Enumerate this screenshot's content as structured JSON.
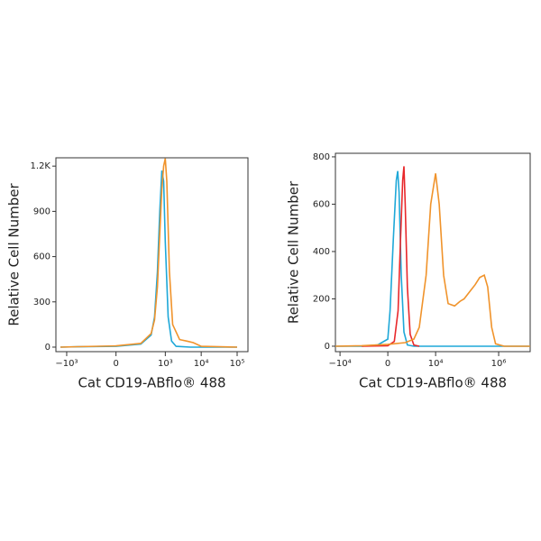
{
  "chart_data": [
    {
      "type": "line",
      "x_label": "Cat CD19-ABflo® 488",
      "y_label": "Relative Cell Number",
      "xscale": "asinh",
      "xlim": [
        -2000,
        200000
      ],
      "ylim": [
        -30,
        1255
      ],
      "xticks": [
        {
          "value": -1000,
          "label": "−10³"
        },
        0,
        {
          "value": 1000,
          "label": "10³"
        },
        {
          "value": 10000,
          "label": "10⁴"
        },
        {
          "value": 100000,
          "label": "10⁵"
        }
      ],
      "yticks": [
        0,
        300,
        600,
        900,
        {
          "value": 1200,
          "label": "1.2K"
        }
      ],
      "series": [
        {
          "color": "#1fa8d8",
          "x": [
            -1500,
            -500,
            0,
            200,
            400,
            500,
            600,
            700,
            800,
            900,
            1000,
            1200,
            1500,
            2000,
            5000,
            100000
          ],
          "values": [
            0,
            2,
            5,
            20,
            80,
            200,
            500,
            900,
            1170,
            1100,
            700,
            200,
            40,
            5,
            0,
            0
          ]
        },
        {
          "color": "#f0932b",
          "x": [
            -1500,
            -500,
            0,
            200,
            400,
            500,
            600,
            700,
            800,
            900,
            1000,
            1100,
            1300,
            1600,
            2500,
            4000,
            6000,
            10000,
            100000
          ],
          "values": [
            0,
            3,
            8,
            25,
            90,
            180,
            400,
            750,
            1050,
            1200,
            1250,
            1100,
            500,
            150,
            50,
            40,
            30,
            5,
            0
          ]
        }
      ]
    },
    {
      "type": "line",
      "x_label": "Cat CD19-ABflo® 488",
      "y_label": "Relative Cell Number",
      "xscale": "asinh",
      "xlim": [
        -14000,
        10000000
      ],
      "ylim": [
        -23,
        815
      ],
      "xticks": [
        {
          "value": -10000,
          "label": "−10⁴"
        },
        0,
        {
          "value": 10000,
          "label": "10⁴"
        },
        {
          "value": 1000000,
          "label": "10⁶"
        }
      ],
      "yticks": [
        0,
        200,
        400,
        600,
        800
      ],
      "series": [
        {
          "color": "#1fa8d8",
          "x": [
            -14000,
            -2000,
            -500,
            0,
            100,
            250,
            400,
            480,
            560,
            700,
            900,
            1200,
            2000,
            10000000
          ],
          "values": [
            0,
            0,
            5,
            30,
            150,
            450,
            700,
            740,
            650,
            300,
            60,
            5,
            0,
            0
          ]
        },
        {
          "color": "#e8282b",
          "x": [
            -2000,
            0,
            300,
            500,
            650,
            800,
            900,
            1000,
            1200,
            1500,
            2000,
            3000
          ],
          "values": [
            0,
            2,
            20,
            150,
            450,
            700,
            760,
            600,
            250,
            50,
            5,
            0
          ]
        },
        {
          "color": "#f0932b",
          "x": [
            -14000,
            -2000,
            0,
            1000,
            2000,
            3000,
            5000,
            7000,
            10000,
            13000,
            18000,
            25000,
            40000,
            60000,
            80000,
            120000,
            180000,
            250000,
            350000,
            450000,
            600000,
            800000,
            1500000,
            10000000
          ],
          "values": [
            0,
            2,
            8,
            15,
            30,
            80,
            300,
            600,
            730,
            600,
            300,
            180,
            170,
            190,
            200,
            230,
            260,
            290,
            300,
            250,
            80,
            10,
            0,
            0
          ]
        }
      ]
    }
  ]
}
